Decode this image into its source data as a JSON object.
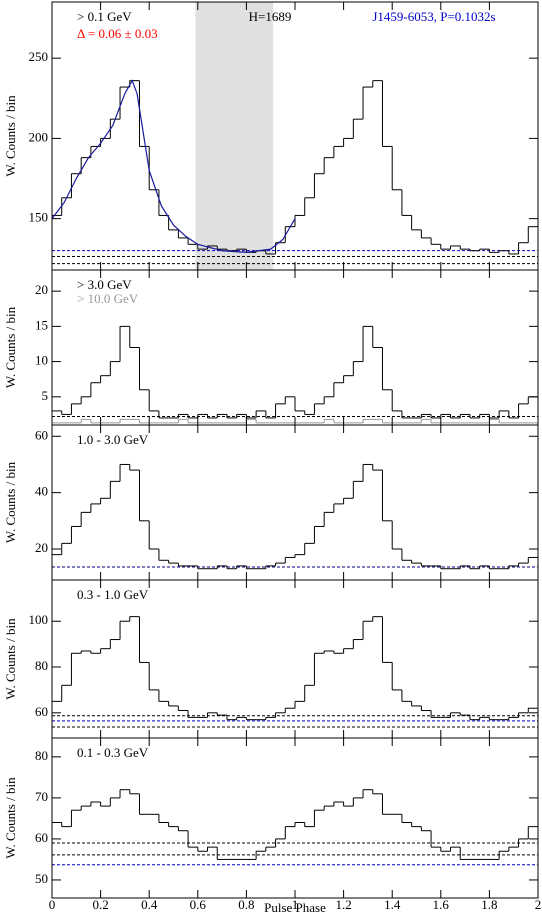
{
  "chart_data": [
    {
      "type": "histogram",
      "series": [
        {
          "name": "> 0.1 GeV",
          "color": "#000000",
          "values": [
            152,
            163,
            178,
            188,
            195,
            200,
            212,
            232,
            236,
            195,
            168,
            152,
            143,
            138,
            134,
            131,
            133,
            131,
            130,
            131,
            129,
            130,
            128,
            135,
            145,
            152,
            163,
            178,
            188,
            195,
            200,
            212,
            232,
            236,
            195,
            168,
            152,
            143,
            138,
            134,
            131,
            133,
            131,
            130,
            131,
            129,
            130,
            128,
            135,
            145
          ]
        }
      ],
      "bins": [
        0,
        0.04,
        0.08,
        0.12,
        0.16,
        0.2,
        0.24,
        0.28,
        0.32,
        0.36,
        0.4,
        0.44,
        0.48,
        0.52,
        0.56,
        0.6,
        0.64,
        0.68,
        0.72,
        0.76,
        0.8,
        0.84,
        0.88,
        0.92,
        0.96,
        1,
        1.04,
        1.08,
        1.12,
        1.16,
        1.2,
        1.24,
        1.28,
        1.32,
        1.36,
        1.4,
        1.44,
        1.48,
        1.52,
        1.56,
        1.6,
        1.64,
        1.68,
        1.72,
        1.76,
        1.8,
        1.84,
        1.88,
        1.92,
        1.96,
        2
      ],
      "annotations": [
        {
          "text": "Δ = 0.06 ± 0.03",
          "color": "#ff0000"
        },
        {
          "text": "H=1689",
          "color": "#000000"
        },
        {
          "text": "J1459-6053, P=0.1032s",
          "color": "#0000cc"
        }
      ],
      "shade_x": [
        0.59,
        0.91
      ],
      "shade_color": "#e0e0e0",
      "fit": {
        "color": "#1a1aa0",
        "x": [
          0,
          0.05,
          0.1,
          0.15,
          0.2,
          0.25,
          0.3,
          0.33,
          0.35,
          0.4,
          0.45,
          0.5,
          0.55,
          0.6,
          0.7,
          0.8,
          0.9,
          0.95,
          1
        ],
        "values": [
          150,
          160,
          175,
          188,
          197,
          208,
          228,
          236,
          228,
          180,
          158,
          146,
          139,
          134,
          130,
          129,
          131,
          137,
          150
        ]
      },
      "hlines": [
        {
          "value": 130.1,
          "color": "#0000cc"
        },
        {
          "value": 126.4,
          "color": "#000000"
        },
        {
          "value": 122,
          "color": "#000000"
        }
      ],
      "ylabel": "W. Counts / bin",
      "xlim": [
        0,
        2
      ],
      "xticks": [
        0,
        0.2,
        0.4,
        0.6,
        0.8,
        1,
        1.2,
        1.4,
        1.6,
        1.8,
        2
      ],
      "ylim": [
        118,
        285
      ],
      "yticks": [
        150,
        200,
        250
      ]
    },
    {
      "type": "histogram",
      "series": [
        {
          "name": "> 3.0 GeV",
          "color": "#000000",
          "values": [
            3,
            2.5,
            4,
            5,
            7,
            8,
            10,
            15,
            12,
            6,
            3,
            2,
            2,
            2.5,
            2,
            2.5,
            2,
            2.5,
            2,
            2.5,
            2,
            3,
            2,
            4,
            5,
            3,
            2.5,
            4,
            5,
            7,
            8,
            10,
            15,
            12,
            6,
            3,
            2,
            2,
            2.5,
            2,
            2.5,
            2,
            2.5,
            2,
            2.5,
            2,
            3,
            2,
            4,
            5
          ]
        },
        {
          "name": "> 10.0 GeV",
          "color": "#999999",
          "values": [
            1.3,
            1.3,
            1.3,
            1.8,
            1.3,
            1.3,
            1.3,
            1.8,
            1.8,
            1.3,
            1.3,
            1.3,
            1.3,
            1.8,
            1.3,
            1.3,
            1.3,
            1.3,
            1.3,
            1.3,
            1.8,
            1.3,
            1.3,
            1.3,
            1.3,
            1.3,
            1.3,
            1.3,
            1.8,
            1.3,
            1.3,
            1.3,
            1.8,
            1.8,
            1.3,
            1.3,
            1.3,
            1.3,
            1.8,
            1.3,
            1.3,
            1.3,
            1.3,
            1.3,
            1.3,
            1.8,
            1.3,
            1.3,
            1.3,
            1.3
          ]
        }
      ],
      "bins": [
        0,
        0.04,
        0.08,
        0.12,
        0.16,
        0.2,
        0.24,
        0.28,
        0.32,
        0.36,
        0.4,
        0.44,
        0.48,
        0.52,
        0.56,
        0.6,
        0.64,
        0.68,
        0.72,
        0.76,
        0.8,
        0.84,
        0.88,
        0.92,
        0.96,
        1,
        1.04,
        1.08,
        1.12,
        1.16,
        1.2,
        1.24,
        1.28,
        1.32,
        1.36,
        1.4,
        1.44,
        1.48,
        1.52,
        1.56,
        1.6,
        1.64,
        1.68,
        1.72,
        1.76,
        1.8,
        1.84,
        1.88,
        1.92,
        1.96,
        2
      ],
      "hlines": [
        {
          "value": 2.2,
          "color": "#000000"
        }
      ],
      "ylabel": "W. Counts / bin",
      "xlim": [
        0,
        2
      ],
      "xticks": [
        0,
        0.2,
        0.4,
        0.6,
        0.8,
        1,
        1.2,
        1.4,
        1.6,
        1.8,
        2
      ],
      "ylim": [
        1,
        23
      ],
      "yticks": [
        5,
        10,
        15,
        20
      ]
    },
    {
      "type": "histogram",
      "series": [
        {
          "name": "1.0 - 3.0 GeV",
          "color": "#000000",
          "values": [
            18,
            22,
            28,
            33,
            36,
            38,
            44,
            50,
            48,
            30,
            20,
            16,
            15,
            14,
            14,
            13,
            13,
            14,
            13,
            14,
            13,
            13,
            14,
            15,
            17,
            18,
            22,
            28,
            33,
            36,
            38,
            44,
            50,
            48,
            30,
            20,
            16,
            15,
            14,
            14,
            13,
            13,
            14,
            13,
            14,
            13,
            13,
            14,
            15,
            17
          ]
        }
      ],
      "bins": [
        0,
        0.04,
        0.08,
        0.12,
        0.16,
        0.2,
        0.24,
        0.28,
        0.32,
        0.36,
        0.4,
        0.44,
        0.48,
        0.52,
        0.56,
        0.6,
        0.64,
        0.68,
        0.72,
        0.76,
        0.8,
        0.84,
        0.88,
        0.92,
        0.96,
        1,
        1.04,
        1.08,
        1.12,
        1.16,
        1.2,
        1.24,
        1.28,
        1.32,
        1.36,
        1.4,
        1.44,
        1.48,
        1.52,
        1.56,
        1.6,
        1.64,
        1.68,
        1.72,
        1.76,
        1.8,
        1.84,
        1.88,
        1.92,
        1.96,
        2
      ],
      "hlines": [
        {
          "value": 13.6,
          "color": "#000080"
        }
      ],
      "ylabel": "W. Counts / bin",
      "xlim": [
        0,
        2
      ],
      "xticks": [
        0,
        0.2,
        0.4,
        0.6,
        0.8,
        1,
        1.2,
        1.4,
        1.6,
        1.8,
        2
      ],
      "ylim": [
        9,
        64
      ],
      "yticks": [
        20,
        40,
        60
      ]
    },
    {
      "type": "histogram",
      "series": [
        {
          "name": "0.3 - 1.0 GeV",
          "color": "#000000",
          "values": [
            65,
            72,
            86,
            87,
            86,
            88,
            92,
            100,
            102,
            82,
            70,
            65,
            63,
            61,
            58,
            58,
            60,
            59,
            57,
            58,
            57,
            57,
            58,
            60,
            62,
            65,
            72,
            86,
            87,
            86,
            88,
            92,
            100,
            102,
            82,
            70,
            65,
            63,
            61,
            58,
            58,
            60,
            59,
            57,
            58,
            57,
            57,
            58,
            60,
            62
          ]
        }
      ],
      "bins": [
        0,
        0.04,
        0.08,
        0.12,
        0.16,
        0.2,
        0.24,
        0.28,
        0.32,
        0.36,
        0.4,
        0.44,
        0.48,
        0.52,
        0.56,
        0.6,
        0.64,
        0.68,
        0.72,
        0.76,
        0.8,
        0.84,
        0.88,
        0.92,
        0.96,
        1,
        1.04,
        1.08,
        1.12,
        1.16,
        1.2,
        1.24,
        1.28,
        1.32,
        1.36,
        1.4,
        1.44,
        1.48,
        1.52,
        1.56,
        1.6,
        1.64,
        1.68,
        1.72,
        1.76,
        1.8,
        1.84,
        1.88,
        1.92,
        1.96,
        2
      ],
      "hlines": [
        {
          "value": 58.7,
          "color": "#000000"
        },
        {
          "value": 56.5,
          "color": "#0000cc"
        },
        {
          "value": 53.8,
          "color": "#000000"
        }
      ],
      "ylabel": "W. Counts / bin",
      "xlim": [
        0,
        2
      ],
      "xticks": [
        0,
        0.2,
        0.4,
        0.6,
        0.8,
        1,
        1.2,
        1.4,
        1.6,
        1.8,
        2
      ],
      "ylim": [
        49,
        118
      ],
      "yticks": [
        60,
        80,
        100
      ]
    },
    {
      "type": "histogram",
      "series": [
        {
          "name": "0.1 - 0.3 GeV",
          "color": "#000000",
          "values": [
            64,
            63,
            67,
            68,
            69,
            68,
            70,
            72,
            71,
            66,
            66,
            64,
            63,
            62,
            58,
            57,
            58,
            55,
            55,
            55,
            55,
            57,
            58,
            60,
            63,
            64,
            63,
            67,
            68,
            69,
            68,
            70,
            72,
            71,
            66,
            66,
            64,
            63,
            62,
            58,
            57,
            58,
            55,
            55,
            55,
            55,
            57,
            58,
            60,
            63
          ]
        }
      ],
      "bins": [
        0,
        0.04,
        0.08,
        0.12,
        0.16,
        0.2,
        0.24,
        0.28,
        0.32,
        0.36,
        0.4,
        0.44,
        0.48,
        0.52,
        0.56,
        0.6,
        0.64,
        0.68,
        0.72,
        0.76,
        0.8,
        0.84,
        0.88,
        0.92,
        0.96,
        1,
        1.04,
        1.08,
        1.12,
        1.16,
        1.2,
        1.24,
        1.28,
        1.32,
        1.36,
        1.4,
        1.44,
        1.48,
        1.52,
        1.56,
        1.6,
        1.64,
        1.68,
        1.72,
        1.76,
        1.8,
        1.84,
        1.88,
        1.92,
        1.96,
        2
      ],
      "hlines": [
        {
          "value": 59,
          "color": "#000000"
        },
        {
          "value": 56.1,
          "color": "#000000"
        },
        {
          "value": 53.7,
          "color": "#0000cc"
        }
      ],
      "ylabel": "W. Counts / bin",
      "xlabel": "Pulse Phase",
      "xlim": [
        0,
        2
      ],
      "xticks": [
        0,
        0.2,
        0.4,
        0.6,
        0.8,
        1,
        1.2,
        1.4,
        1.6,
        1.8,
        2
      ],
      "ylim": [
        45.6,
        84.6
      ],
      "yticks": [
        50,
        60,
        70,
        80
      ]
    }
  ]
}
